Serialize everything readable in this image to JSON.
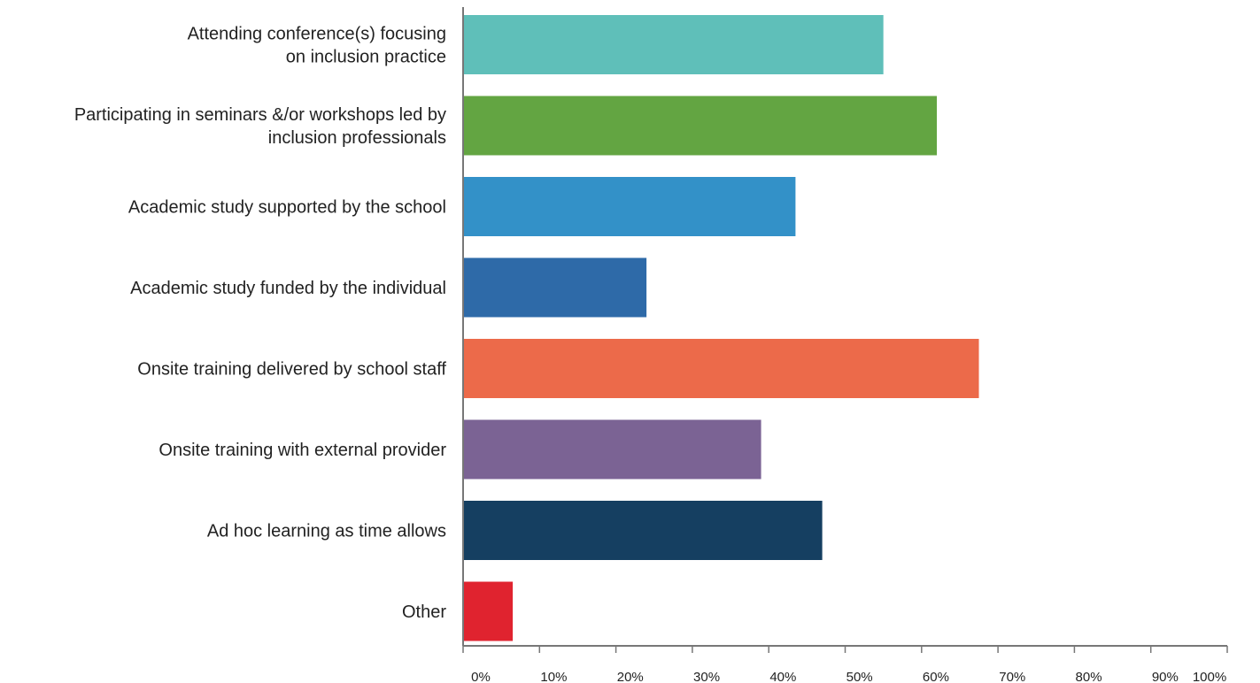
{
  "chart_data": {
    "type": "bar",
    "orientation": "horizontal",
    "categories": [
      [
        "Attending conference(s) focusing",
        "on inclusion practice"
      ],
      [
        "Participating in seminars &/or workshops led by",
        "inclusion professionals"
      ],
      [
        "Academic study supported by the school"
      ],
      [
        "Academic study funded by the individual"
      ],
      [
        "Onsite training delivered by school staff"
      ],
      [
        "Onsite training with external provider"
      ],
      [
        "Ad hoc learning as time allows"
      ],
      [
        "Other"
      ]
    ],
    "values": [
      55,
      62,
      43.5,
      24,
      67.5,
      39,
      47,
      6.5
    ],
    "colors": [
      "#5fbfb9",
      "#63a542",
      "#3391c8",
      "#2e6aa8",
      "#ec6a4a",
      "#7b6394",
      "#153f61",
      "#e0232f"
    ],
    "xlim": [
      0,
      100
    ],
    "ticks": [
      0,
      10,
      20,
      30,
      40,
      50,
      60,
      70,
      80,
      90,
      100
    ],
    "tick_labels": [
      "0%",
      "10%",
      "20%",
      "30%",
      "40%",
      "50%",
      "60%",
      "70%",
      "80%",
      "90%",
      "100%"
    ],
    "title": "",
    "xlabel": "",
    "ylabel": "",
    "grid": false,
    "legend": "none",
    "axis_color": "#777777"
  }
}
